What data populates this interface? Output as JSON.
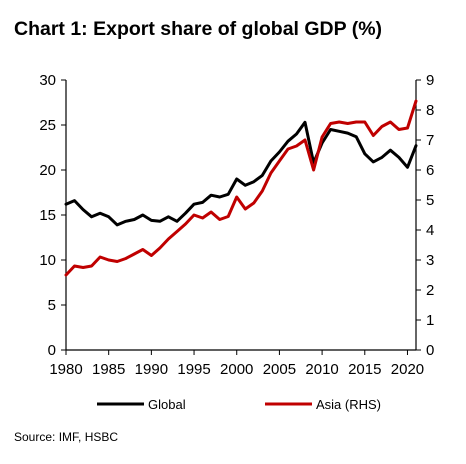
{
  "title": "Chart 1: Export share of global GDP (%)",
  "source": "Source: IMF, HSBC",
  "chart_data": {
    "type": "line",
    "x": [
      1980,
      1981,
      1982,
      1983,
      1984,
      1985,
      1986,
      1987,
      1988,
      1989,
      1990,
      1991,
      1992,
      1993,
      1994,
      1995,
      1996,
      1997,
      1998,
      1999,
      2000,
      2001,
      2002,
      2003,
      2004,
      2005,
      2006,
      2007,
      2008,
      2009,
      2010,
      2011,
      2012,
      2013,
      2014,
      2015,
      2016,
      2017,
      2018,
      2019,
      2020,
      2021
    ],
    "xticks": [
      1980,
      1985,
      1990,
      1995,
      2000,
      2005,
      2010,
      2015,
      2020
    ],
    "xlim": [
      1980,
      2021
    ],
    "left_axis": {
      "ylim": [
        0,
        30
      ],
      "ticks": [
        0,
        5,
        10,
        15,
        20,
        25,
        30
      ]
    },
    "right_axis": {
      "ylim": [
        0,
        9
      ],
      "ticks": [
        0,
        1,
        2,
        3,
        4,
        5,
        6,
        7,
        8,
        9
      ]
    },
    "series": [
      {
        "name": "Global",
        "axis": "left",
        "color": "#000000",
        "values": [
          16.2,
          16.6,
          15.6,
          14.8,
          15.2,
          14.8,
          13.9,
          14.3,
          14.5,
          15.0,
          14.4,
          14.3,
          14.8,
          14.3,
          15.2,
          16.2,
          16.4,
          17.2,
          17.0,
          17.3,
          19.0,
          18.3,
          18.7,
          19.4,
          21.0,
          22.0,
          23.2,
          24.0,
          25.3,
          20.8,
          23.0,
          24.5,
          24.3,
          24.1,
          23.7,
          21.8,
          20.9,
          21.4,
          22.2,
          21.4,
          20.3,
          22.7
        ]
      },
      {
        "name": "Asia (RHS)",
        "axis": "right",
        "color": "#c00000",
        "values": [
          2.5,
          2.8,
          2.75,
          2.8,
          3.1,
          3.0,
          2.95,
          3.05,
          3.2,
          3.35,
          3.15,
          3.4,
          3.7,
          3.95,
          4.2,
          4.5,
          4.4,
          4.6,
          4.35,
          4.45,
          5.1,
          4.7,
          4.9,
          5.3,
          5.9,
          6.3,
          6.7,
          6.8,
          7.0,
          6.0,
          7.1,
          7.55,
          7.6,
          7.55,
          7.6,
          7.6,
          7.15,
          7.45,
          7.6,
          7.35,
          7.4,
          8.3
        ]
      }
    ],
    "legend": {
      "position": "bottom",
      "entries": [
        "Global",
        "Asia (RHS)"
      ]
    }
  }
}
